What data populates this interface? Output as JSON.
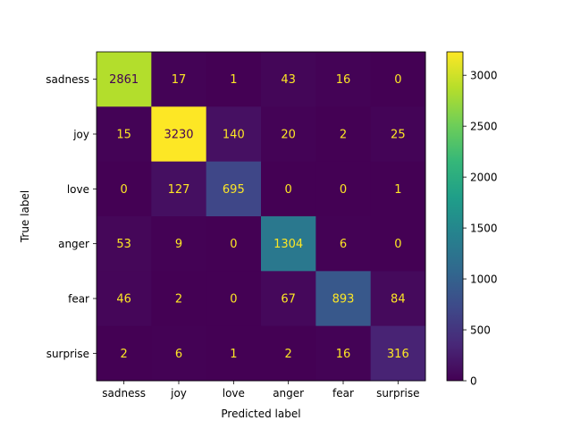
{
  "chart_data": {
    "type": "heatmap",
    "title": "",
    "xlabel": "Predicted label",
    "ylabel": "True label",
    "x_categories": [
      "sadness",
      "joy",
      "love",
      "anger",
      "fear",
      "surprise"
    ],
    "y_categories": [
      "sadness",
      "joy",
      "love",
      "anger",
      "fear",
      "surprise"
    ],
    "values": [
      [
        2861,
        17,
        1,
        43,
        16,
        0
      ],
      [
        15,
        3230,
        140,
        20,
        2,
        25
      ],
      [
        0,
        127,
        695,
        0,
        0,
        1
      ],
      [
        53,
        9,
        0,
        1304,
        6,
        0
      ],
      [
        46,
        2,
        0,
        67,
        893,
        84
      ],
      [
        2,
        6,
        1,
        2,
        16,
        316
      ]
    ],
    "colormap": "viridis",
    "colorbar": {
      "range": [
        0,
        3230
      ],
      "ticks": [
        0,
        500,
        1000,
        1500,
        2000,
        2500,
        3000
      ]
    },
    "annotation_colors": {
      "on_dark": "#fde725",
      "on_light": "#440154"
    },
    "grid": false
  }
}
